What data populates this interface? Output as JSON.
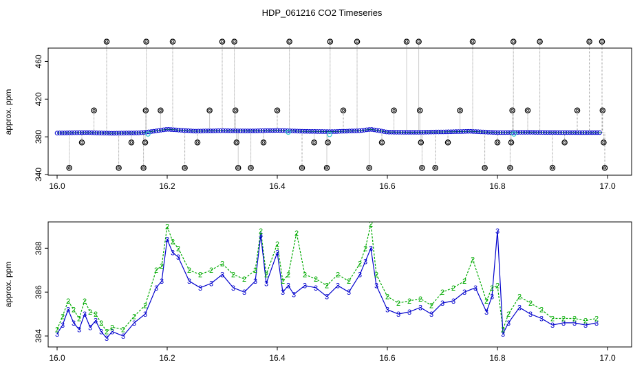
{
  "title": "HDP_061216  CO2 Timeseries",
  "colors": {
    "background": "#ffffff",
    "axis": "#000000",
    "raw_drop_line": "#999999",
    "outlier_circle": "#000000",
    "series_3": "#0000cc",
    "series_2": "#00aa00",
    "highlight": "#33cccc"
  },
  "chart_data": [
    {
      "type": "line",
      "panel": "top",
      "xlabel": "",
      "ylabel": "approx. ppm",
      "xlim": [
        16.0,
        17.0
      ],
      "ylim": [
        340,
        480
      ],
      "xticks": [
        "16.0",
        "16.2",
        "16.4",
        "16.6",
        "16.8",
        "17.0"
      ],
      "yticks": [
        "340",
        "380",
        "420",
        "460"
      ],
      "baseline_series": {
        "x": [
          16.0,
          16.05,
          16.1,
          16.15,
          16.17,
          16.2,
          16.25,
          16.3,
          16.35,
          16.4,
          16.45,
          16.5,
          16.55,
          16.57,
          16.6,
          16.65,
          16.7,
          16.75,
          16.8,
          16.85,
          16.9,
          16.95,
          16.99
        ],
        "y": [
          384,
          384.5,
          383.8,
          384.2,
          385.5,
          388,
          386,
          386.5,
          386.2,
          386.8,
          385.8,
          385.5,
          386.5,
          388,
          385,
          384.8,
          385.2,
          385.8,
          384.5,
          384.8,
          384.6,
          384.5,
          384.5
        ]
      },
      "outliers": [
        {
          "x": 16.022,
          "y": 347
        },
        {
          "x": 16.045,
          "y": 374
        },
        {
          "x": 16.067,
          "y": 408
        },
        {
          "x": 16.09,
          "y": 481
        },
        {
          "x": 16.112,
          "y": 347
        },
        {
          "x": 16.135,
          "y": 374
        },
        {
          "x": 16.157,
          "y": 347
        },
        {
          "x": 16.16,
          "y": 374
        },
        {
          "x": 16.161,
          "y": 408
        },
        {
          "x": 16.162,
          "y": 481
        },
        {
          "x": 16.188,
          "y": 408
        },
        {
          "x": 16.21,
          "y": 481
        },
        {
          "x": 16.232,
          "y": 347
        },
        {
          "x": 16.255,
          "y": 374
        },
        {
          "x": 16.277,
          "y": 408
        },
        {
          "x": 16.3,
          "y": 481
        },
        {
          "x": 16.322,
          "y": 481
        },
        {
          "x": 16.324,
          "y": 408
        },
        {
          "x": 16.326,
          "y": 374
        },
        {
          "x": 16.329,
          "y": 347
        },
        {
          "x": 16.352,
          "y": 347
        },
        {
          "x": 16.375,
          "y": 374
        },
        {
          "x": 16.4,
          "y": 408
        },
        {
          "x": 16.422,
          "y": 481
        },
        {
          "x": 16.445,
          "y": 347
        },
        {
          "x": 16.467,
          "y": 374
        },
        {
          "x": 16.49,
          "y": 347
        },
        {
          "x": 16.492,
          "y": 374
        },
        {
          "x": 16.496,
          "y": 481
        },
        {
          "x": 16.52,
          "y": 408
        },
        {
          "x": 16.545,
          "y": 481
        },
        {
          "x": 16.567,
          "y": 347
        },
        {
          "x": 16.59,
          "y": 374
        },
        {
          "x": 16.612,
          "y": 408
        },
        {
          "x": 16.635,
          "y": 481
        },
        {
          "x": 16.657,
          "y": 481
        },
        {
          "x": 16.659,
          "y": 408
        },
        {
          "x": 16.661,
          "y": 374
        },
        {
          "x": 16.663,
          "y": 347
        },
        {
          "x": 16.687,
          "y": 347
        },
        {
          "x": 16.71,
          "y": 374
        },
        {
          "x": 16.732,
          "y": 408
        },
        {
          "x": 16.755,
          "y": 481
        },
        {
          "x": 16.777,
          "y": 347
        },
        {
          "x": 16.8,
          "y": 374
        },
        {
          "x": 16.823,
          "y": 347
        },
        {
          "x": 16.825,
          "y": 374
        },
        {
          "x": 16.827,
          "y": 408
        },
        {
          "x": 16.829,
          "y": 481
        },
        {
          "x": 16.855,
          "y": 408
        },
        {
          "x": 16.877,
          "y": 481
        },
        {
          "x": 16.9,
          "y": 347
        },
        {
          "x": 16.922,
          "y": 374
        },
        {
          "x": 16.945,
          "y": 408
        },
        {
          "x": 16.967,
          "y": 481
        },
        {
          "x": 16.99,
          "y": 481
        },
        {
          "x": 16.991,
          "y": 408
        },
        {
          "x": 16.993,
          "y": 374
        },
        {
          "x": 16.995,
          "y": 347
        }
      ],
      "highlights": [
        {
          "x": 16.165,
          "y": 383
        },
        {
          "x": 16.495,
          "y": 382.5
        },
        {
          "x": 16.83,
          "y": 383
        },
        {
          "x": 16.42,
          "y": 385
        }
      ]
    },
    {
      "type": "line",
      "panel": "bottom",
      "xlabel": "",
      "ylabel": "approx. ppm",
      "xlim": [
        16.0,
        17.0
      ],
      "ylim": [
        383.5,
        389.2
      ],
      "xticks": [
        "16.0",
        "16.2",
        "16.4",
        "16.6",
        "16.8",
        "17.0"
      ],
      "yticks": [
        "384",
        "386",
        "388"
      ],
      "series": [
        {
          "marker": "3",
          "x": [
            16.0,
            16.01,
            16.02,
            16.03,
            16.04,
            16.05,
            16.06,
            16.07,
            16.08,
            16.09,
            16.1,
            16.12,
            16.14,
            16.16,
            16.18,
            16.19,
            16.2,
            16.21,
            16.22,
            16.24,
            16.26,
            16.28,
            16.3,
            16.32,
            16.34,
            16.36,
            16.37,
            16.38,
            16.4,
            16.41,
            16.42,
            16.43,
            16.45,
            16.47,
            16.49,
            16.51,
            16.53,
            16.55,
            16.56,
            16.57,
            16.58,
            16.6,
            16.62,
            16.64,
            16.66,
            16.68,
            16.7,
            16.72,
            16.74,
            16.76,
            16.78,
            16.79,
            16.8,
            16.81,
            16.82,
            16.84,
            16.86,
            16.88,
            16.9,
            16.92,
            16.94,
            16.96,
            16.98
          ],
          "y": [
            384.1,
            384.5,
            385.2,
            384.6,
            384.3,
            385.0,
            384.4,
            384.7,
            384.2,
            383.9,
            384.2,
            384.0,
            384.6,
            385.0,
            386.2,
            386.5,
            388.4,
            387.8,
            387.6,
            386.5,
            386.2,
            386.4,
            386.8,
            386.2,
            386.0,
            386.5,
            388.6,
            386.4,
            387.8,
            386.0,
            386.3,
            385.9,
            386.3,
            386.2,
            385.8,
            386.3,
            386.0,
            386.8,
            387.4,
            388.0,
            386.3,
            385.2,
            385.0,
            385.1,
            385.3,
            385.0,
            385.5,
            385.6,
            386.0,
            386.2,
            385.1,
            385.8,
            388.8,
            384.1,
            384.6,
            385.3,
            385.0,
            384.8,
            384.5,
            384.6,
            384.6,
            384.5,
            384.6
          ]
        },
        {
          "marker": "2",
          "x": [
            16.0,
            16.01,
            16.02,
            16.03,
            16.04,
            16.05,
            16.06,
            16.07,
            16.08,
            16.09,
            16.1,
            16.12,
            16.14,
            16.16,
            16.18,
            16.19,
            16.2,
            16.21,
            16.22,
            16.24,
            16.26,
            16.28,
            16.3,
            16.32,
            16.34,
            16.36,
            16.37,
            16.38,
            16.4,
            16.41,
            16.42,
            16.435,
            16.45,
            16.47,
            16.49,
            16.51,
            16.53,
            16.55,
            16.56,
            16.57,
            16.58,
            16.6,
            16.62,
            16.64,
            16.66,
            16.68,
            16.7,
            16.72,
            16.74,
            16.755,
            16.78,
            16.79,
            16.8,
            16.81,
            16.82,
            16.84,
            16.86,
            16.88,
            16.9,
            16.92,
            16.94,
            16.96,
            16.98
          ],
          "y": [
            384.3,
            384.9,
            385.6,
            385.2,
            384.8,
            385.6,
            385.1,
            385.0,
            384.6,
            384.2,
            384.4,
            384.3,
            384.9,
            385.4,
            387.0,
            387.2,
            389.0,
            388.3,
            388.0,
            387.0,
            386.8,
            387.0,
            387.3,
            386.8,
            386.6,
            387.0,
            388.8,
            386.8,
            388.2,
            386.5,
            386.8,
            388.7,
            386.8,
            386.6,
            386.3,
            386.8,
            386.5,
            387.3,
            388.0,
            389.1,
            386.8,
            385.8,
            385.5,
            385.6,
            385.7,
            385.4,
            386.0,
            386.2,
            386.5,
            387.5,
            385.6,
            386.2,
            386.3,
            384.3,
            385.0,
            385.8,
            385.5,
            385.2,
            384.8,
            384.8,
            384.8,
            384.7,
            384.8
          ]
        }
      ]
    }
  ]
}
